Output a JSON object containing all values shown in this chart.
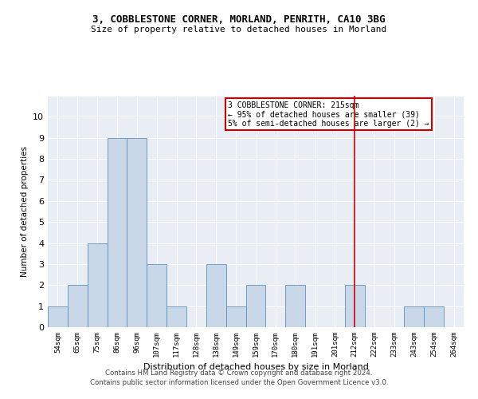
{
  "title": "3, COBBLESTONE CORNER, MORLAND, PENRITH, CA10 3BG",
  "subtitle": "Size of property relative to detached houses in Morland",
  "xlabel": "Distribution of detached houses by size in Morland",
  "ylabel": "Number of detached properties",
  "categories": [
    "54sqm",
    "65sqm",
    "75sqm",
    "86sqm",
    "96sqm",
    "107sqm",
    "117sqm",
    "128sqm",
    "138sqm",
    "149sqm",
    "159sqm",
    "170sqm",
    "180sqm",
    "191sqm",
    "201sqm",
    "212sqm",
    "222sqm",
    "233sqm",
    "243sqm",
    "254sqm",
    "264sqm"
  ],
  "values": [
    1,
    2,
    4,
    9,
    9,
    3,
    1,
    0,
    3,
    1,
    2,
    0,
    2,
    0,
    0,
    2,
    0,
    0,
    1,
    1,
    0
  ],
  "bar_color": "#c8d8e8",
  "bar_edge_color": "#6090b8",
  "vline_x_index": 15,
  "vline_color": "#cc0000",
  "annotation_text": "3 COBBLESTONE CORNER: 215sqm\n← 95% of detached houses are smaller (39)\n5% of semi-detached houses are larger (2) →",
  "annotation_box_color": "#cc0000",
  "ylim": [
    0,
    11
  ],
  "yticks": [
    0,
    1,
    2,
    3,
    4,
    5,
    6,
    7,
    8,
    9,
    10,
    11
  ],
  "background_color": "#e8eef4",
  "plot_bg_color": "#e8eef4",
  "footer_line1": "Contains HM Land Registry data © Crown copyright and database right 2024.",
  "footer_line2": "Contains public sector information licensed under the Open Government Licence v3.0."
}
